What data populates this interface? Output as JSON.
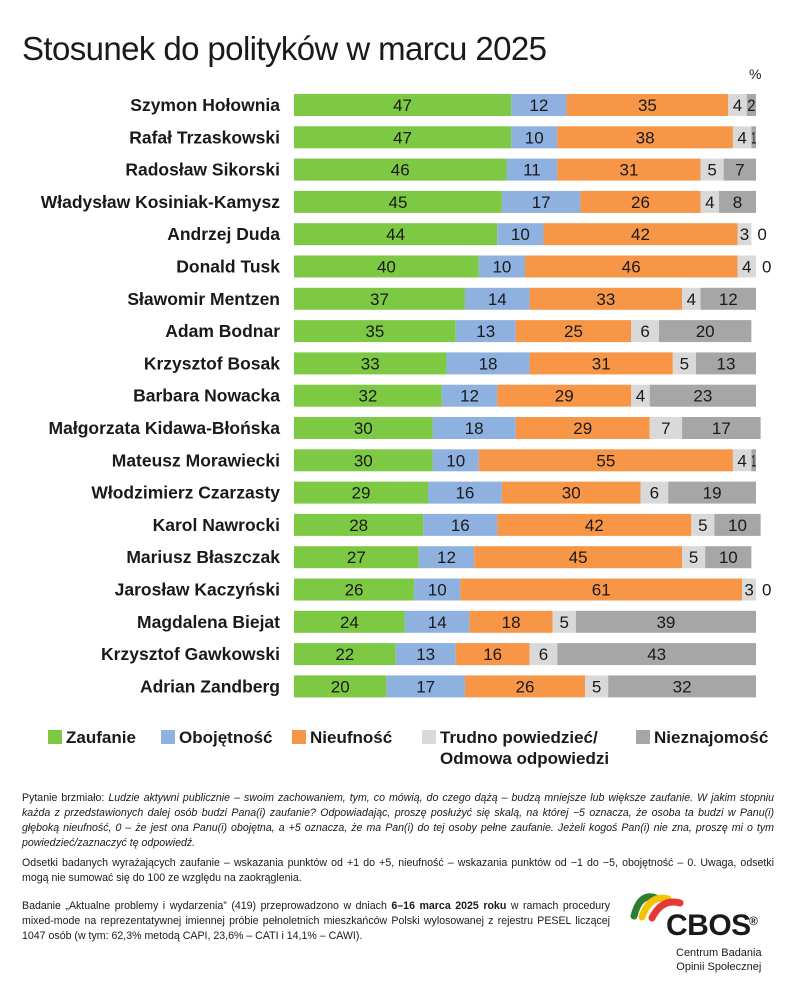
{
  "title": "Stosunek do polityków w marcu 2025",
  "unit_label": "%",
  "colors": {
    "trust": "#7dc943",
    "indifference": "#8fb1e0",
    "distrust": "#f79646",
    "hard_to_say": "#d9d9d9",
    "unknown": "#a6a6a6"
  },
  "chart_data": {
    "type": "bar",
    "orientation": "horizontal",
    "stacked": true,
    "categories": [
      "Szymon Hołownia",
      "Rafał Trzaskowski",
      "Radosław Sikorski",
      "Władysław Kosiniak-Kamysz",
      "Andrzej Duda",
      "Donald Tusk",
      "Sławomir Mentzen",
      "Adam Bodnar",
      "Krzysztof Bosak",
      "Barbara Nowacka",
      "Małgorzata Kidawa-Błońska",
      "Mateusz Morawiecki",
      "Włodzimierz Czarzasty",
      "Karol Nawrocki",
      "Mariusz Błaszczak",
      "Jarosław Kaczyński",
      "Magdalena Biejat",
      "Krzysztof Gawkowski",
      "Adrian Zandberg"
    ],
    "series": [
      {
        "name": "Zaufanie",
        "values": [
          47,
          47,
          46,
          45,
          44,
          40,
          37,
          35,
          33,
          32,
          30,
          30,
          29,
          28,
          27,
          26,
          24,
          22,
          20
        ]
      },
      {
        "name": "Obojętność",
        "values": [
          12,
          10,
          11,
          17,
          10,
          10,
          14,
          13,
          18,
          12,
          18,
          10,
          16,
          16,
          12,
          10,
          14,
          13,
          17
        ]
      },
      {
        "name": "Nieufność",
        "values": [
          35,
          38,
          31,
          26,
          42,
          46,
          33,
          25,
          31,
          29,
          29,
          55,
          30,
          42,
          45,
          61,
          18,
          16,
          26
        ]
      },
      {
        "name": "Trudno powiedzieć/ Odmowa odpowiedzi",
        "values": [
          4,
          4,
          5,
          4,
          3,
          4,
          4,
          6,
          5,
          4,
          7,
          4,
          6,
          5,
          5,
          3,
          5,
          6,
          5
        ]
      },
      {
        "name": "Nieznajomość",
        "values": [
          2,
          1,
          7,
          8,
          0,
          0,
          12,
          20,
          13,
          23,
          17,
          1,
          19,
          10,
          10,
          0,
          39,
          43,
          32
        ]
      }
    ],
    "xlim": [
      0,
      100
    ]
  },
  "legend": [
    {
      "label": "Zaufanie"
    },
    {
      "label": "Obojętność"
    },
    {
      "label": "Nieufność"
    },
    {
      "label": "Trudno powiedzieć/\nOdmowa odpowiedzi"
    },
    {
      "label": "Nieznajomość"
    }
  ],
  "notes": {
    "question_prefix": "Pytanie brzmiało: ",
    "question_body": "Ludzie aktywni publicznie – swoim zachowaniem, tym, co mówią, do czego dążą – budzą mniejsze lub większe zaufanie. W jakim stopniu każda z przedstawionych dalej osób budzi Pana(i) zaufanie? Odpowiadając, proszę posłużyć się skalą, na której −5 oznacza, że osoba ta budzi w Panu(i) głęboką nieufność, 0 – że jest ona Panu(i) obojętna, a +5 oznacza, że ma Pan(i) do tej osoby pełne zaufanie. Jeżeli kogoś Pan(i) nie zna, proszę mi o tym powiedzieć/zaznaczyć tę odpowiedź.",
    "method": "Odsetki badanych wyrażających zaufanie – wskazania punktów od +1 do +5, nieufność – wskazania punktów od −1 do −5, obojętność – 0. Uwaga, odsetki mogą nie sumować się do 100 ze względu na zaokrąglenia.",
    "survey_part1": "Badanie „Aktualne problemy i wydarzenia” (419) przeprowadzono w dniach ",
    "survey_dates": "6–16 marca 2025 roku",
    "survey_part2": " w ramach procedury mixed-mode na reprezentatywnej imiennej próbie pełnoletnich mieszkańców Polski wylosowanej z rejestru PESEL liczącej 1047 osób (w tym: 62,3% metodą CAPI, 23,6% – CATI i 14,1% – CAWI)."
  },
  "logo": {
    "name": "CBOS",
    "registered": "®",
    "subtitle": "Centrum Badania\nOpinii Społecznej"
  }
}
